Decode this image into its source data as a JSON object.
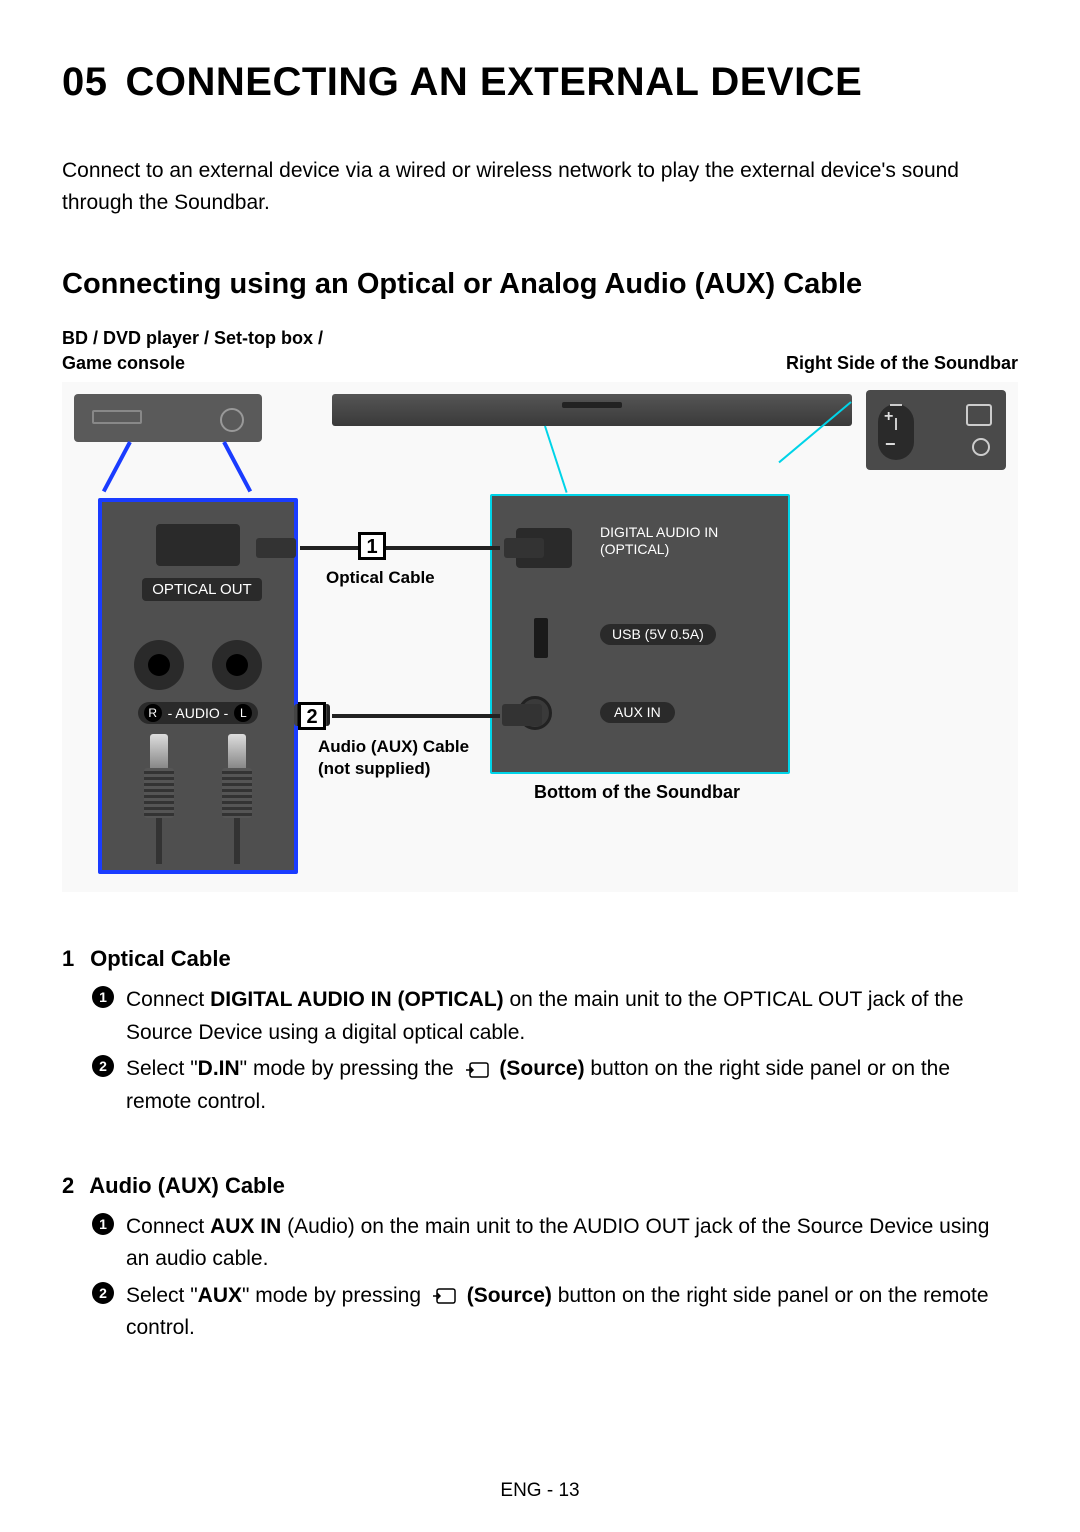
{
  "heading": {
    "num": "05",
    "title": "CONNECTING AN EXTERNAL DEVICE"
  },
  "intro": "Connect to an external device via a wired or wireless network to play the external device's sound through the Soundbar.",
  "subheading": "Connecting using an Optical or Analog Audio (AUX) Cable",
  "captions": {
    "left_line1": "BD / DVD player / Set-top box /",
    "left_line2": "Game console",
    "right": "Right Side of the Soundbar"
  },
  "diagram": {
    "bottom_panel": {
      "digital_audio": "DIGITAL AUDIO IN",
      "optical": "(OPTICAL)",
      "usb": "USB (5V 0.5A)",
      "aux": "AUX IN",
      "caption": "Bottom of the Soundbar"
    },
    "source_panel": {
      "optical_out": "OPTICAL OUT",
      "audio_r": "R",
      "audio_text": " - AUDIO - ",
      "audio_l": "L"
    },
    "badge1": "1",
    "badge2": "2",
    "cable1_label": "Optical Cable",
    "cable2_label_l1": "Audio (AUX) Cable",
    "cable2_label_l2": "(not supplied)"
  },
  "sections": [
    {
      "num": "1",
      "title": "Optical Cable",
      "steps": [
        {
          "n": "1",
          "pre": "Connect ",
          "bold1": "DIGITAL AUDIO IN (OPTICAL)",
          "mid": " on the main unit to the OPTICAL OUT jack of the Source Device using a digital optical cable.",
          "bold2": "",
          "post": ""
        },
        {
          "n": "2",
          "pre": "Select \"",
          "bold1": "D.IN",
          "mid": "\" mode by pressing the ",
          "icon": true,
          "bold2": "(Source)",
          "post": " button on the right side panel or on the remote control."
        }
      ]
    },
    {
      "num": "2",
      "title": "Audio (AUX) Cable",
      "steps": [
        {
          "n": "1",
          "pre": "Connect ",
          "bold1": "AUX IN",
          "mid": " (Audio) on the main unit to the AUDIO OUT jack of the Source Device using an audio cable.",
          "bold2": "",
          "post": ""
        },
        {
          "n": "2",
          "pre": "Select \"",
          "bold1": "AUX",
          "mid": "\" mode by pressing ",
          "icon": true,
          "bold2": "(Source)",
          "post": " button on the right side panel or on the remote control."
        }
      ]
    }
  ],
  "footer": "ENG - 13",
  "colors": {
    "cyan": "#00d4e8",
    "blue": "#1a3cff",
    "panel": "#4f4f4f"
  }
}
